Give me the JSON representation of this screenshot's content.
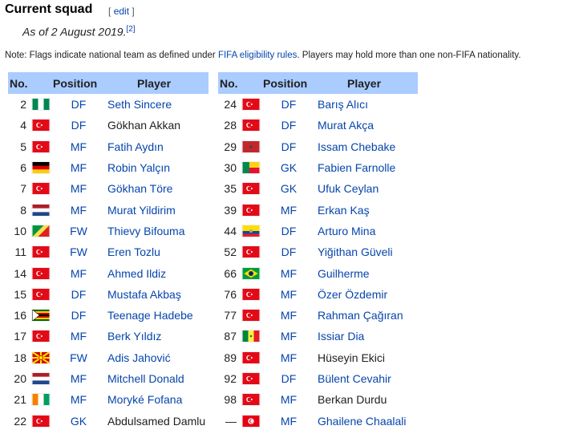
{
  "heading": "Current squad",
  "edit": {
    "open": "[",
    "label": "edit",
    "close": "]"
  },
  "as_of": "As of 2 August 2019.",
  "as_of_ref": "[2]",
  "note": {
    "prefix": "Note: Flags indicate national team as defined under ",
    "link": "FIFA eligibility rules",
    "suffix": ". Players may hold more than one non-FIFA nationality."
  },
  "columns": [
    "No.",
    "Position",
    "Player"
  ],
  "colors": {
    "header_bg": "#aaccff",
    "link": "#0645ad",
    "text": "#202122"
  },
  "left": [
    {
      "no": "2",
      "flag": "NGA",
      "pos": "DF",
      "player": "Seth Sincere",
      "link": true
    },
    {
      "no": "4",
      "flag": "TUR",
      "pos": "DF",
      "player": "Gökhan Akkan",
      "link": false
    },
    {
      "no": "5",
      "flag": "TUR",
      "pos": "MF",
      "player": "Fatih Aydın",
      "link": true
    },
    {
      "no": "6",
      "flag": "GER",
      "pos": "MF",
      "player": "Robin Yalçın",
      "link": true
    },
    {
      "no": "7",
      "flag": "TUR",
      "pos": "MF",
      "player": "Gökhan Töre",
      "link": true
    },
    {
      "no": "8",
      "flag": "NED",
      "pos": "MF",
      "player": "Murat Yildirim",
      "link": true
    },
    {
      "no": "10",
      "flag": "CGO",
      "pos": "FW",
      "player": "Thievy Bifouma",
      "link": true
    },
    {
      "no": "11",
      "flag": "TUR",
      "pos": "FW",
      "player": "Eren Tozlu",
      "link": true
    },
    {
      "no": "14",
      "flag": "TUR",
      "pos": "MF",
      "player": "Ahmed Ildiz",
      "link": true
    },
    {
      "no": "15",
      "flag": "TUR",
      "pos": "DF",
      "player": "Mustafa Akbaş",
      "link": true
    },
    {
      "no": "16",
      "flag": "ZIM",
      "pos": "DF",
      "player": "Teenage Hadebe",
      "link": true
    },
    {
      "no": "17",
      "flag": "TUR",
      "pos": "MF",
      "player": "Berk Yıldız",
      "link": true
    },
    {
      "no": "18",
      "flag": "MKD",
      "pos": "FW",
      "player": "Adis Jahović",
      "link": true
    },
    {
      "no": "20",
      "flag": "NED",
      "pos": "MF",
      "player": "Mitchell Donald",
      "link": true
    },
    {
      "no": "21",
      "flag": "CIV",
      "pos": "MF",
      "player": "Moryké Fofana",
      "link": true
    },
    {
      "no": "22",
      "flag": "TUR",
      "pos": "GK",
      "player": "Abdulsamed Damlu",
      "link": false
    }
  ],
  "right": [
    {
      "no": "24",
      "flag": "TUR",
      "pos": "DF",
      "player": "Barış Alıcı",
      "link": true
    },
    {
      "no": "28",
      "flag": "TUR",
      "pos": "DF",
      "player": "Murat Akça",
      "link": true
    },
    {
      "no": "29",
      "flag": "MAR",
      "pos": "DF",
      "player": "Issam Chebake",
      "link": true
    },
    {
      "no": "30",
      "flag": "BEN",
      "pos": "GK",
      "player": "Fabien Farnolle",
      "link": true
    },
    {
      "no": "35",
      "flag": "TUR",
      "pos": "GK",
      "player": "Ufuk Ceylan",
      "link": true
    },
    {
      "no": "39",
      "flag": "TUR",
      "pos": "MF",
      "player": "Erkan Kaş",
      "link": true
    },
    {
      "no": "44",
      "flag": "ECU",
      "pos": "DF",
      "player": "Arturo Mina",
      "link": true
    },
    {
      "no": "52",
      "flag": "TUR",
      "pos": "DF",
      "player": "Yiğithan Güveli",
      "link": true
    },
    {
      "no": "66",
      "flag": "BRA",
      "pos": "MF",
      "player": "Guilherme",
      "link": true
    },
    {
      "no": "76",
      "flag": "TUR",
      "pos": "MF",
      "player": "Özer Özdemir",
      "link": true
    },
    {
      "no": "77",
      "flag": "TUR",
      "pos": "MF",
      "player": "Rahman Çağıran",
      "link": true
    },
    {
      "no": "87",
      "flag": "SEN",
      "pos": "MF",
      "player": "Issiar Dia",
      "link": true
    },
    {
      "no": "89",
      "flag": "TUR",
      "pos": "MF",
      "player": "Hüseyin Ekici",
      "link": false
    },
    {
      "no": "92",
      "flag": "TUR",
      "pos": "DF",
      "player": "Bülent Cevahir",
      "link": true
    },
    {
      "no": "98",
      "flag": "TUR",
      "pos": "MF",
      "player": "Berkan Durdu",
      "link": false
    },
    {
      "no": "—",
      "flag": "TUN",
      "pos": "MF",
      "player": "Ghailene Chaalali",
      "link": true
    }
  ]
}
